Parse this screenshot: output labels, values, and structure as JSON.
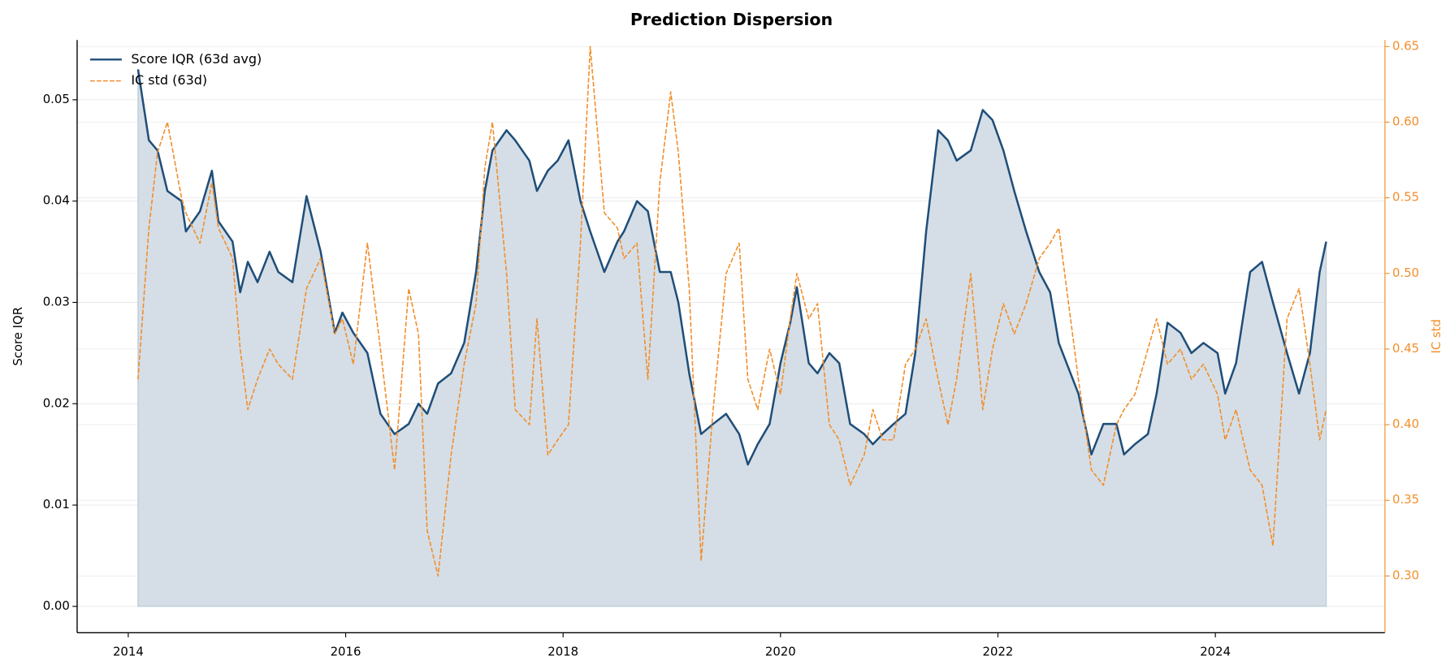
{
  "chart_data": {
    "type": "line",
    "title": "Prediction Dispersion",
    "ylabel": "Score IQR",
    "y2label": "IC std",
    "x": [
      2014.09,
      2014.19,
      2014.27,
      2014.36,
      2014.49,
      2014.53,
      2014.66,
      2014.77,
      2014.83,
      2014.96,
      2015.03,
      2015.1,
      2015.19,
      2015.3,
      2015.38,
      2015.51,
      2015.64,
      2015.77,
      2015.9,
      2015.97,
      2016.07,
      2016.2,
      2016.32,
      2016.45,
      2016.58,
      2016.67,
      2016.75,
      2016.85,
      2016.97,
      2017.09,
      2017.2,
      2017.28,
      2017.35,
      2017.48,
      2017.56,
      2017.69,
      2017.76,
      2017.86,
      2017.95,
      2018.05,
      2018.16,
      2018.25,
      2018.38,
      2018.5,
      2018.56,
      2018.68,
      2018.78,
      2018.89,
      2018.99,
      2019.06,
      2019.16,
      2019.27,
      2019.38,
      2019.5,
      2019.62,
      2019.7,
      2019.79,
      2019.9,
      2020.0,
      2020.09,
      2020.15,
      2020.26,
      2020.34,
      2020.45,
      2020.54,
      2020.64,
      2020.77,
      2020.85,
      2020.94,
      2021.04,
      2021.15,
      2021.24,
      2021.34,
      2021.45,
      2021.54,
      2021.62,
      2021.75,
      2021.86,
      2021.95,
      2022.05,
      2022.15,
      2022.26,
      2022.38,
      2022.48,
      2022.56,
      2022.74,
      2022.86,
      2022.97,
      2023.09,
      2023.16,
      2023.26,
      2023.38,
      2023.46,
      2023.56,
      2023.68,
      2023.78,
      2023.89,
      2024.02,
      2024.09,
      2024.19,
      2024.32,
      2024.43,
      2024.53,
      2024.66,
      2024.77,
      2024.87,
      2024.96,
      2025.02
    ],
    "series": [
      {
        "name": "Score IQR (63d avg)",
        "color": "#1f4e79",
        "fill": true,
        "fill_color": "#d5dee6",
        "dashed": false,
        "values": [
          0.053,
          0.046,
          0.045,
          0.041,
          0.04,
          0.037,
          0.039,
          0.043,
          0.038,
          0.036,
          0.031,
          0.034,
          0.032,
          0.035,
          0.033,
          0.032,
          0.0405,
          0.035,
          0.027,
          0.029,
          0.027,
          0.025,
          0.019,
          0.017,
          0.018,
          0.02,
          0.019,
          0.022,
          0.023,
          0.026,
          0.033,
          0.041,
          0.045,
          0.047,
          0.046,
          0.044,
          0.041,
          0.043,
          0.044,
          0.046,
          0.04,
          0.037,
          0.033,
          0.036,
          0.037,
          0.04,
          0.039,
          0.033,
          0.033,
          0.03,
          0.023,
          0.017,
          0.018,
          0.019,
          0.017,
          0.014,
          0.016,
          0.018,
          0.024,
          0.028,
          0.0315,
          0.024,
          0.023,
          0.025,
          0.024,
          0.018,
          0.017,
          0.016,
          0.017,
          0.018,
          0.019,
          0.025,
          0.037,
          0.047,
          0.046,
          0.044,
          0.045,
          0.049,
          0.048,
          0.045,
          0.041,
          0.037,
          0.033,
          0.031,
          0.026,
          0.021,
          0.015,
          0.018,
          0.018,
          0.015,
          0.016,
          0.017,
          0.021,
          0.028,
          0.027,
          0.025,
          0.026,
          0.025,
          0.021,
          0.024,
          0.033,
          0.034,
          0.03,
          0.025,
          0.021,
          0.025,
          0.033,
          0.036
        ]
      },
      {
        "name": "IC std (63d)",
        "color": "#f28e2b",
        "axis": "y2",
        "dashed": true,
        "values": [
          0.43,
          0.53,
          0.58,
          0.6,
          0.55,
          0.54,
          0.52,
          0.56,
          0.53,
          0.51,
          0.45,
          0.41,
          0.43,
          0.45,
          0.44,
          0.43,
          0.49,
          0.51,
          0.46,
          0.47,
          0.44,
          0.52,
          0.45,
          0.37,
          0.49,
          0.46,
          0.33,
          0.3,
          0.38,
          0.44,
          0.48,
          0.57,
          0.6,
          0.5,
          0.41,
          0.4,
          0.47,
          0.38,
          0.39,
          0.4,
          0.52,
          0.65,
          0.54,
          0.53,
          0.51,
          0.52,
          0.43,
          0.56,
          0.62,
          0.58,
          0.49,
          0.31,
          0.41,
          0.5,
          0.52,
          0.43,
          0.41,
          0.45,
          0.42,
          0.47,
          0.5,
          0.47,
          0.48,
          0.4,
          0.39,
          0.36,
          0.38,
          0.41,
          0.39,
          0.39,
          0.44,
          0.45,
          0.47,
          0.43,
          0.4,
          0.43,
          0.5,
          0.41,
          0.45,
          0.48,
          0.46,
          0.48,
          0.51,
          0.52,
          0.53,
          0.43,
          0.37,
          0.36,
          0.4,
          0.41,
          0.42,
          0.45,
          0.47,
          0.44,
          0.45,
          0.43,
          0.44,
          0.42,
          0.39,
          0.41,
          0.37,
          0.36,
          0.32,
          0.47,
          0.49,
          0.44,
          0.39,
          0.41
        ]
      }
    ],
    "xlim": [
      2013.53,
      2025.56
    ],
    "xticks": [
      2014,
      2016,
      2018,
      2020,
      2022,
      2024
    ],
    "ylim": [
      -0.0026,
      0.0559
    ],
    "yticks": [
      {
        "value": 0,
        "label": "0.00"
      },
      0.01,
      0.02,
      0.03,
      0.04,
      0.05
    ],
    "y2lim": [
      0.2625,
      0.6543
    ],
    "y2ticks": [
      {
        "value": 0.3,
        "label": "0.30"
      },
      0.35,
      {
        "value": 0.4,
        "label": "0.40"
      },
      0.45,
      {
        "value": 0.5,
        "label": "0.50"
      },
      0.55,
      {
        "value": 0.6,
        "label": "0.60"
      },
      0.65
    ],
    "y2color": "#f28e2b",
    "grid": true,
    "legend": "upper left"
  }
}
